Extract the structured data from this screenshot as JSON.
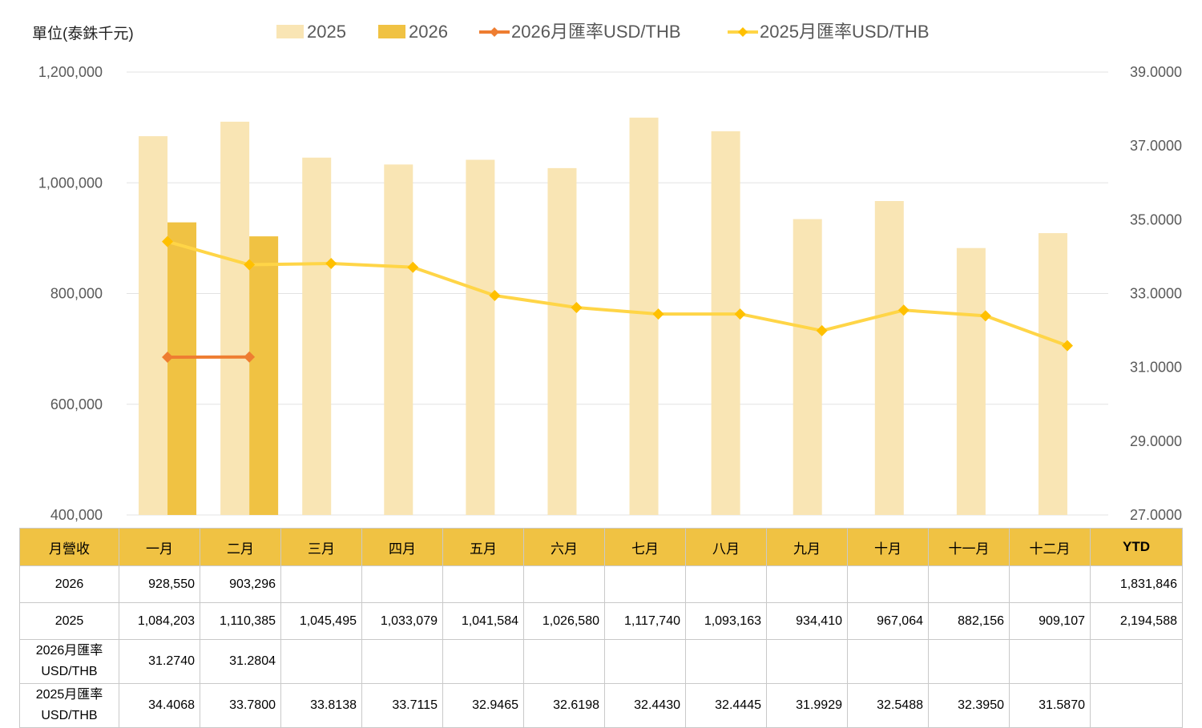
{
  "unit_label": "單位(泰銖千元)",
  "legend": [
    {
      "label": "2025",
      "kind": "bar",
      "color": "#f9e5b4"
    },
    {
      "label": "2026",
      "kind": "bar",
      "color": "#f0c243"
    },
    {
      "label": "2026月匯率USD/THB",
      "kind": "line",
      "color": "#ee7d31"
    },
    {
      "label": "2025月匯率USD/THB",
      "kind": "line",
      "color": "#ffd547"
    }
  ],
  "chart_data": {
    "type": "bar",
    "categories": [
      "一月",
      "二月",
      "三月",
      "四月",
      "五月",
      "六月",
      "七月",
      "八月",
      "九月",
      "十月",
      "十一月",
      "十二月"
    ],
    "series": [
      {
        "name": "2025",
        "type": "bar",
        "axis": "left",
        "color": "#f9e5b4",
        "values": [
          1084203,
          1110385,
          1045495,
          1033079,
          1041584,
          1026580,
          1117740,
          1093163,
          934410,
          967064,
          882156,
          909107
        ]
      },
      {
        "name": "2026",
        "type": "bar",
        "axis": "left",
        "color": "#f0c243",
        "values": [
          928550,
          903296,
          null,
          null,
          null,
          null,
          null,
          null,
          null,
          null,
          null,
          null
        ]
      },
      {
        "name": "2026月匯率USD/THB",
        "type": "line",
        "axis": "right",
        "color": "#ee7d31",
        "values": [
          31.274,
          31.2804,
          null,
          null,
          null,
          null,
          null,
          null,
          null,
          null,
          null,
          null
        ]
      },
      {
        "name": "2025月匯率USD/THB",
        "type": "line",
        "axis": "right",
        "color": "#ffd547",
        "values": [
          34.4068,
          33.78,
          33.8138,
          33.7115,
          32.9465,
          32.6198,
          32.443,
          32.4445,
          31.9929,
          32.5488,
          32.395,
          31.587
        ]
      }
    ],
    "y_left": {
      "min": 400000,
      "max": 1200000,
      "ticks": [
        "400,000",
        "600,000",
        "800,000",
        "1,000,000",
        "1,200,000"
      ]
    },
    "y_right": {
      "min": 27,
      "max": 39,
      "ticks": [
        "27.0000",
        "29.0000",
        "31.0000",
        "33.0000",
        "35.0000",
        "37.0000",
        "39.0000"
      ]
    },
    "grid": true,
    "legend_position": "top"
  },
  "table": {
    "header": [
      "月營收",
      "一月",
      "二月",
      "三月",
      "四月",
      "五月",
      "六月",
      "七月",
      "八月",
      "九月",
      "十月",
      "十一月",
      "十二月",
      "YTD"
    ],
    "rows": [
      {
        "label": [
          "2026"
        ],
        "cells": [
          "928,550",
          "903,296",
          "",
          "",
          "",
          "",
          "",
          "",
          "",
          "",
          "",
          "",
          "1,831,846"
        ]
      },
      {
        "label": [
          "2025"
        ],
        "cells": [
          "1,084,203",
          "1,110,385",
          "1,045,495",
          "1,033,079",
          "1,041,584",
          "1,026,580",
          "1,117,740",
          "1,093,163",
          "934,410",
          "967,064",
          "882,156",
          "909,107",
          "2,194,588"
        ]
      },
      {
        "label": [
          "2026月匯率",
          "USD/THB"
        ],
        "cells": [
          "31.2740",
          "31.2804",
          "",
          "",
          "",
          "",
          "",
          "",
          "",
          "",
          "",
          "",
          ""
        ]
      },
      {
        "label": [
          "2025月匯率",
          "USD/THB"
        ],
        "cells": [
          "34.4068",
          "33.7800",
          "33.8138",
          "33.7115",
          "32.9465",
          "32.6198",
          "32.4430",
          "32.4445",
          "31.9929",
          "32.5488",
          "32.3950",
          "31.5870",
          ""
        ]
      }
    ]
  }
}
